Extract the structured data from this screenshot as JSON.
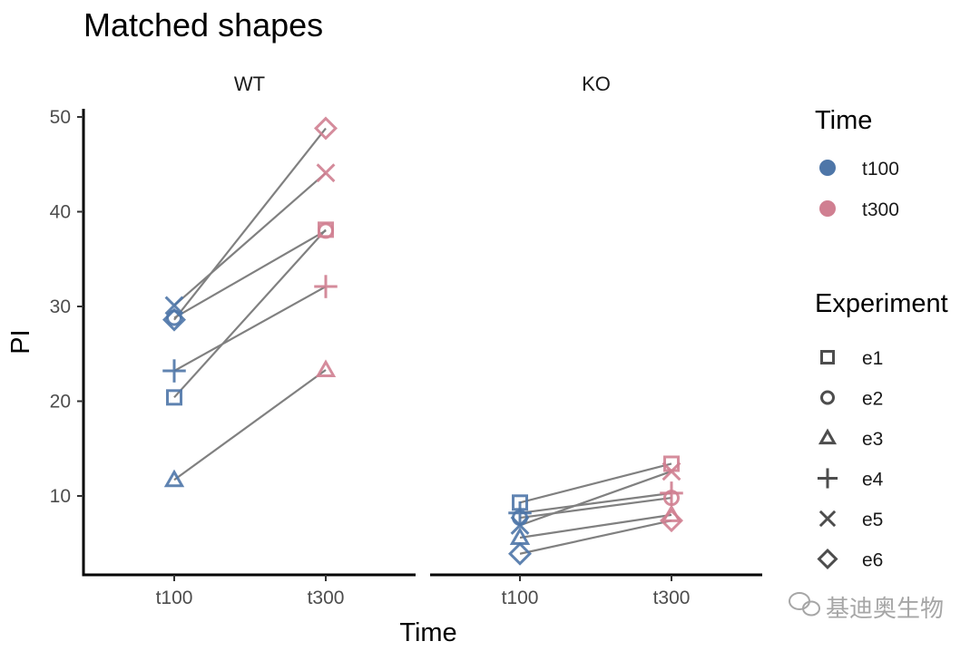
{
  "chart_data": {
    "type": "scatter",
    "title": "Matched shapes",
    "xlabel": "Time",
    "ylabel": "PI",
    "ylim": [
      0,
      50
    ],
    "yticks": [
      10,
      20,
      30,
      40,
      50
    ],
    "categories": [
      "t100",
      "t300"
    ],
    "panels": [
      {
        "name": "WT",
        "series": [
          {
            "experiment": "e1",
            "values": [
              20.4,
              38.1
            ]
          },
          {
            "experiment": "e2",
            "values": [
              28.8,
              38.0
            ]
          },
          {
            "experiment": "e3",
            "values": [
              11.7,
              23.3
            ]
          },
          {
            "experiment": "e4",
            "values": [
              23.2,
              32.1
            ]
          },
          {
            "experiment": "e5",
            "values": [
              30.1,
              44.1
            ]
          },
          {
            "experiment": "e6",
            "values": [
              28.6,
              48.8
            ]
          }
        ]
      },
      {
        "name": "KO",
        "series": [
          {
            "experiment": "e1",
            "values": [
              9.3,
              13.4
            ]
          },
          {
            "experiment": "e2",
            "values": [
              7.7,
              9.8
            ]
          },
          {
            "experiment": "e3",
            "values": [
              5.6,
              8.0
            ]
          },
          {
            "experiment": "e4",
            "values": [
              8.2,
              10.3
            ]
          },
          {
            "experiment": "e5",
            "values": [
              6.9,
              12.6
            ]
          },
          {
            "experiment": "e6",
            "values": [
              3.9,
              7.4
            ]
          }
        ]
      }
    ],
    "legend_time": {
      "title": "Time",
      "entries": [
        {
          "label": "t100",
          "color": "#4e76a8"
        },
        {
          "label": "t300",
          "color": "#d07f91"
        }
      ]
    },
    "legend_experiment": {
      "title": "Experiment",
      "entries": [
        {
          "label": "e1",
          "shape": "square"
        },
        {
          "label": "e2",
          "shape": "circle"
        },
        {
          "label": "e3",
          "shape": "triangle"
        },
        {
          "label": "e4",
          "shape": "plus"
        },
        {
          "label": "e5",
          "shape": "cross"
        },
        {
          "label": "e6",
          "shape": "diamond"
        }
      ]
    },
    "legend_position": "right",
    "grid": false
  },
  "colors": {
    "line": "#808080",
    "shape_legend": "#4d4d4d"
  },
  "watermark": "基迪奥生物"
}
